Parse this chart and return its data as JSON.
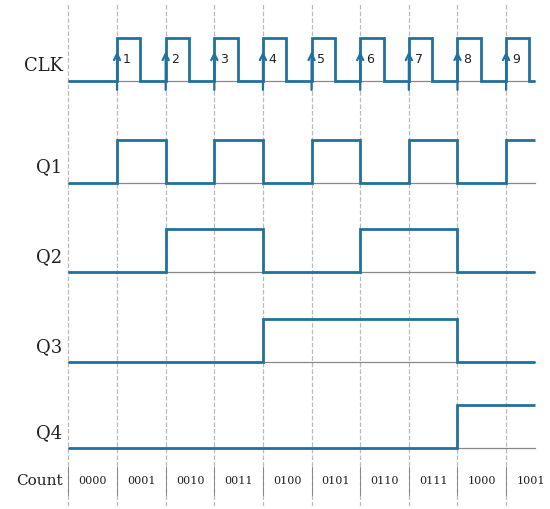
{
  "signal_color": "#2171a0",
  "bg_color": "#ffffff",
  "axis_line_color": "#888888",
  "grid_color": "#bbbbbb",
  "text_color": "#222222",
  "clk_numbers": [
    "1",
    "2",
    "3",
    "4",
    "5",
    "6",
    "7",
    "8",
    "9"
  ],
  "count_labels": [
    "0000",
    "0001",
    "0010",
    "0011",
    "0100",
    "0101",
    "0110",
    "0111",
    "1000",
    "1001"
  ],
  "signal_labels": [
    "CLK",
    "Q1",
    "Q2",
    "Q3",
    "Q4"
  ],
  "dpi": 100,
  "figsize": [
    5.5,
    5.09
  ],
  "row_bottoms": [
    4.3,
    3.0,
    1.85,
    0.7,
    -0.4
  ],
  "sig_amp": 0.55,
  "label_fontsize": 13,
  "count_fontsize": 8,
  "num_fontsize": 9
}
